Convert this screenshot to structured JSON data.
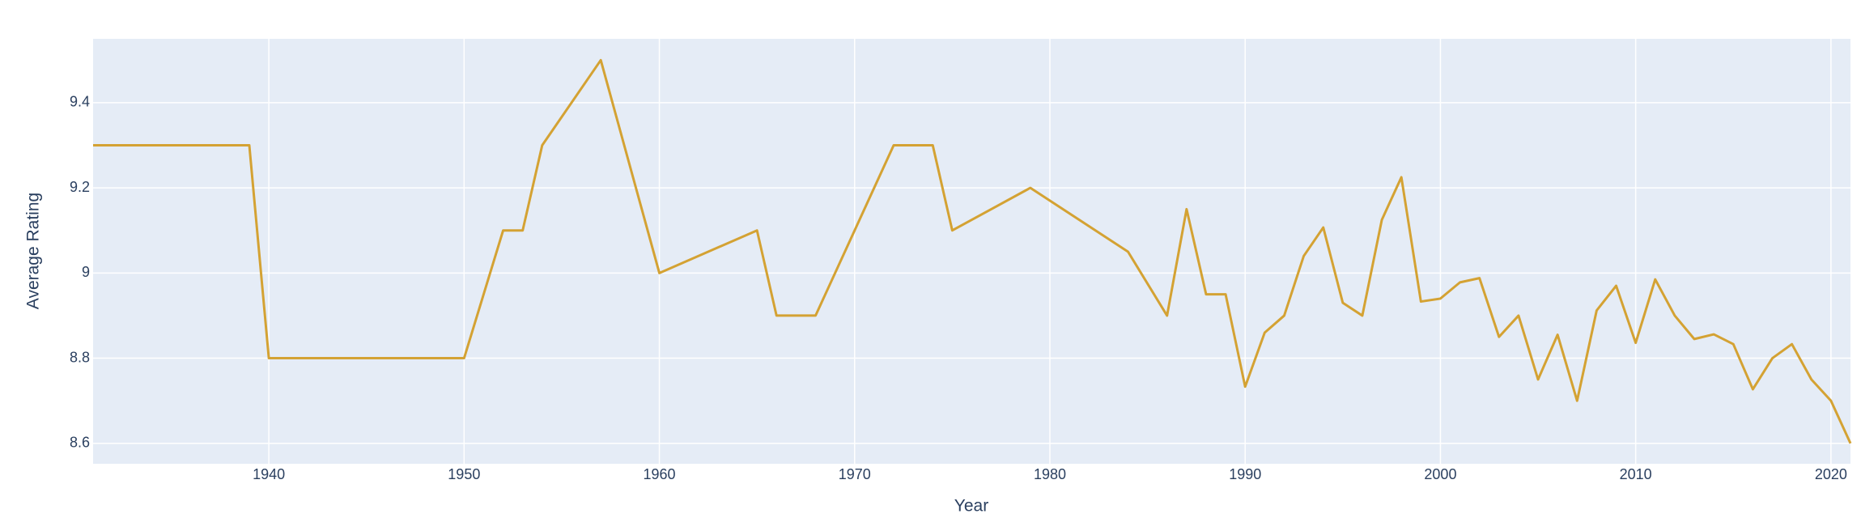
{
  "chart_data": {
    "type": "line",
    "x_label": "Year",
    "y_label": "Average Rating",
    "x": [
      1931,
      1939,
      1940,
      1950,
      1952,
      1953,
      1954,
      1957,
      1960,
      1965,
      1966,
      1968,
      1972,
      1974,
      1975,
      1979,
      1984,
      1986,
      1987,
      1988,
      1989,
      1990,
      1991,
      1992,
      1993,
      1994,
      1995,
      1996,
      1997,
      1998,
      1999,
      2000,
      2001,
      2002,
      2003,
      2004,
      2005,
      2006,
      2007,
      2008,
      2009,
      2010,
      2011,
      2012,
      2013,
      2014,
      2015,
      2016,
      2017,
      2018,
      2019,
      2020,
      2021
    ],
    "values": [
      9.3,
      9.3,
      8.8,
      8.8,
      9.1,
      9.1,
      9.3,
      9.5,
      9.0,
      9.1,
      8.9,
      8.9,
      9.3,
      9.3,
      9.1,
      9.2,
      9.05,
      8.9,
      9.15,
      8.95,
      8.95,
      8.733,
      8.86,
      8.9,
      9.04,
      9.107,
      8.93,
      8.9,
      9.125,
      9.225,
      8.933,
      8.94,
      8.978,
      8.988,
      8.85,
      8.9,
      8.75,
      8.855,
      8.7,
      8.912,
      8.97,
      8.836,
      8.985,
      8.9,
      8.845,
      8.856,
      8.833,
      8.727,
      8.8,
      8.833,
      8.75,
      8.7,
      8.6
    ],
    "color": "#d4a233",
    "xlim": [
      1931,
      2021
    ],
    "ylim": [
      8.552,
      9.55
    ],
    "xticks": [
      1940,
      1950,
      1960,
      1970,
      1980,
      1990,
      2000,
      2010,
      2020
    ],
    "yticks": [
      8.6,
      8.8,
      9,
      9.2,
      9.4
    ],
    "grid": true
  }
}
